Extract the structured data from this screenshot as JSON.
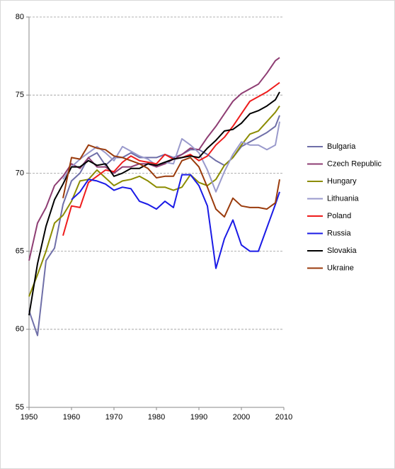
{
  "chart_data": {
    "type": "line",
    "x": [
      1950,
      1952,
      1954,
      1956,
      1958,
      1960,
      1962,
      1964,
      1966,
      1968,
      1970,
      1972,
      1974,
      1976,
      1978,
      1980,
      1982,
      1984,
      1986,
      1988,
      1990,
      1992,
      1994,
      1996,
      1998,
      2000,
      2002,
      2004,
      2006,
      2008,
      2009
    ],
    "xlim": [
      1950,
      2010
    ],
    "xticks": [
      1950,
      1960,
      1970,
      1980,
      1990,
      2000,
      2010
    ],
    "ylim": [
      55,
      80
    ],
    "yticks": [
      55,
      60,
      65,
      70,
      75,
      80
    ],
    "grid": true,
    "legend": "right",
    "series": [
      {
        "name": "Bulgaria",
        "color": "#6f6fa8",
        "values": [
          61.2,
          59.6,
          64.4,
          65.2,
          68.0,
          69.5,
          70.0,
          71.0,
          71.3,
          70.5,
          71.0,
          71.0,
          71.3,
          71.0,
          71.0,
          71.0,
          71.2,
          71.0,
          71.2,
          71.5,
          71.5,
          71.2,
          70.8,
          70.5,
          71.0,
          71.7,
          72.0,
          72.3,
          72.6,
          73.0,
          73.7
        ]
      },
      {
        "name": "Czech Republic",
        "color": "#8e3d73",
        "values": [
          64.4,
          66.8,
          67.8,
          69.2,
          69.8,
          70.6,
          70.3,
          71.0,
          70.4,
          70.4,
          70.0,
          70.4,
          70.4,
          70.6,
          70.6,
          70.4,
          70.6,
          70.9,
          71.2,
          71.6,
          71.5,
          72.3,
          73.0,
          73.8,
          74.6,
          75.1,
          75.4,
          75.7,
          76.4,
          77.2,
          77.4
        ]
      },
      {
        "name": "Hungary",
        "color": "#8c8c00",
        "values": [
          62.1,
          63.5,
          65.0,
          66.8,
          67.3,
          68.2,
          69.5,
          69.6,
          70.2,
          69.7,
          69.2,
          69.5,
          69.6,
          69.8,
          69.5,
          69.1,
          69.1,
          68.9,
          69.1,
          69.9,
          69.4,
          69.2,
          69.6,
          70.5,
          71.0,
          71.8,
          72.5,
          72.7,
          73.3,
          73.9,
          74.3
        ]
      },
      {
        "name": "Lithuania",
        "color": "#9a9acc",
        "values": [
          null,
          null,
          null,
          null,
          69.6,
          70.4,
          70.9,
          71.3,
          71.7,
          71.3,
          70.8,
          71.7,
          71.4,
          71.1,
          70.9,
          70.5,
          70.7,
          70.6,
          72.2,
          71.8,
          71.3,
          70.2,
          68.8,
          70.1,
          71.2,
          72.0,
          71.8,
          71.8,
          71.5,
          71.8,
          73.3
        ]
      },
      {
        "name": "Poland",
        "color": "#ee1c1c",
        "values": [
          null,
          null,
          null,
          null,
          66.0,
          67.9,
          67.8,
          69.4,
          69.8,
          70.2,
          70.1,
          70.7,
          71.1,
          70.8,
          70.7,
          70.6,
          71.2,
          70.9,
          71.0,
          71.2,
          70.8,
          71.1,
          71.8,
          72.3,
          73.0,
          73.8,
          74.6,
          74.9,
          75.2,
          75.6,
          75.8
        ]
      },
      {
        "name": "Russia",
        "color": "#1a1ae6",
        "values": [
          null,
          null,
          null,
          null,
          null,
          68.3,
          68.8,
          69.6,
          69.5,
          69.3,
          68.9,
          69.1,
          69.0,
          68.2,
          68.0,
          67.7,
          68.2,
          67.8,
          69.9,
          69.9,
          69.2,
          67.9,
          63.9,
          65.8,
          67.0,
          65.4,
          65.0,
          65.0,
          66.5,
          68.0,
          68.8
        ]
      },
      {
        "name": "Slovakia",
        "color": "#000000",
        "values": [
          60.9,
          64.2,
          66.6,
          68.3,
          69.3,
          70.4,
          70.4,
          70.8,
          70.5,
          70.6,
          69.8,
          70.0,
          70.3,
          70.3,
          70.6,
          70.5,
          70.7,
          70.9,
          71.0,
          71.1,
          71.0,
          71.6,
          72.1,
          72.7,
          72.8,
          73.2,
          73.8,
          74.0,
          74.3,
          74.7,
          75.2
        ]
      },
      {
        "name": "Ukraine",
        "color": "#9a3b0c",
        "values": [
          null,
          null,
          null,
          null,
          68.4,
          71.0,
          70.9,
          71.8,
          71.6,
          71.5,
          71.1,
          71.0,
          70.8,
          70.6,
          70.3,
          69.7,
          69.8,
          69.8,
          70.8,
          71.0,
          70.4,
          69.1,
          67.7,
          67.2,
          68.4,
          67.9,
          67.8,
          67.8,
          67.7,
          68.1,
          69.6
        ]
      }
    ]
  }
}
